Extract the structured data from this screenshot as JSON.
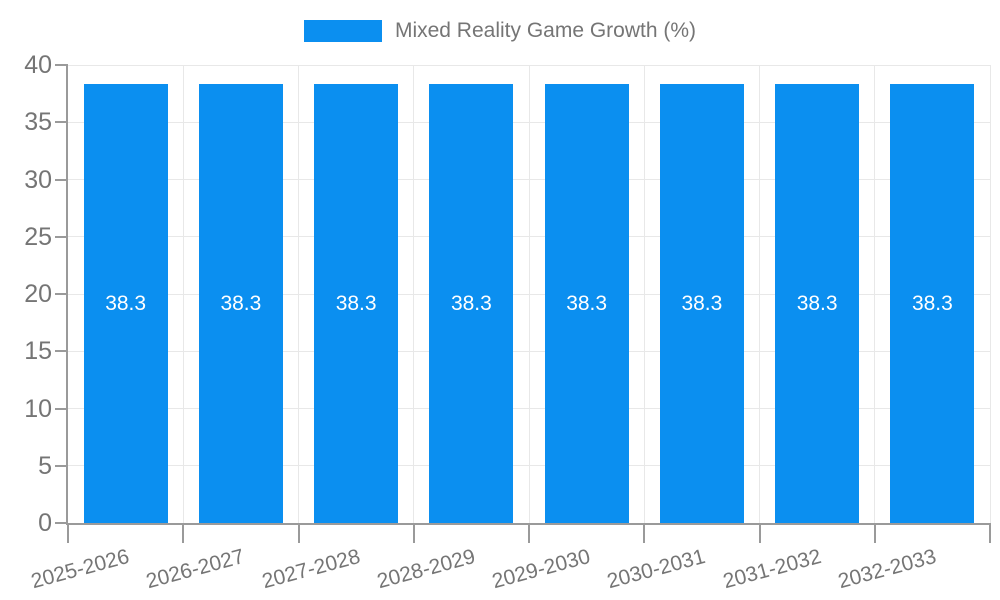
{
  "chart_data": {
    "type": "bar",
    "title": "Mixed Reality Game Growth (%)",
    "legend_entries": [
      "Mixed Reality Game Growth (%)"
    ],
    "legend_position": "top",
    "categories": [
      "2025-2026",
      "2026-2027",
      "2027-2028",
      "2028-2029",
      "2029-2030",
      "2030-2031",
      "2031-2032",
      "2032-2033"
    ],
    "values": [
      38.3,
      38.3,
      38.3,
      38.3,
      38.3,
      38.3,
      38.3,
      38.3
    ],
    "xlabel": "",
    "ylabel": "",
    "ylim": [
      0,
      40
    ],
    "yticks": [
      0,
      5,
      10,
      15,
      20,
      25,
      30,
      35,
      40
    ],
    "grid": true,
    "colors": {
      "bar": "#0b8ff0",
      "bar_label": "#ffffff",
      "axis": "#9a9a9a",
      "gridline": "#e8e8e8",
      "tick_label": "#757575",
      "legend_text": "#757575",
      "background": "#ffffff"
    }
  }
}
